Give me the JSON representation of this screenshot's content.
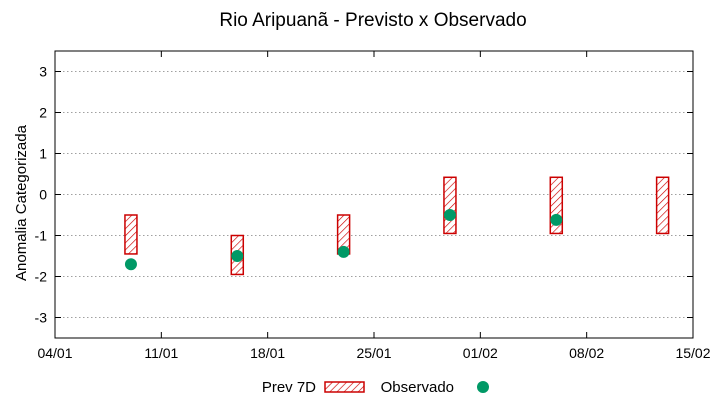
{
  "chart_data": {
    "type": "scatter",
    "title": "Rio Aripuanã - Previsto x Observado",
    "xlabel": "",
    "ylabel": "Anomalia Categorizada",
    "ylim": [
      -3.5,
      3.5
    ],
    "xlim": [
      0,
      42
    ],
    "grid": true,
    "x_ticks": [
      {
        "pos": 0,
        "label": "04/01"
      },
      {
        "pos": 7,
        "label": "11/01"
      },
      {
        "pos": 14,
        "label": "18/01"
      },
      {
        "pos": 21,
        "label": "25/01"
      },
      {
        "pos": 28,
        "label": "01/02"
      },
      {
        "pos": 35,
        "label": "08/02"
      },
      {
        "pos": 42,
        "label": "15/02"
      }
    ],
    "y_ticks": [
      -3,
      -2,
      -1,
      0,
      1,
      2,
      3
    ],
    "series": [
      {
        "name": "Prev 7D",
        "kind": "range-bar",
        "points": [
          {
            "day": 5,
            "low": -1.45,
            "high": -0.5
          },
          {
            "day": 12,
            "low": -1.95,
            "high": -1.0
          },
          {
            "day": 19,
            "low": -1.45,
            "high": -0.5
          },
          {
            "day": 26,
            "low": -0.95,
            "high": 0.42
          },
          {
            "day": 33,
            "low": -0.95,
            "high": 0.42
          },
          {
            "day": 40,
            "low": -0.95,
            "high": 0.42
          }
        ]
      },
      {
        "name": "Observado",
        "kind": "point",
        "points": [
          {
            "day": 5,
            "value": -1.7
          },
          {
            "day": 12,
            "value": -1.5
          },
          {
            "day": 19,
            "value": -1.4
          },
          {
            "day": 26,
            "value": -0.5
          },
          {
            "day": 33,
            "value": -0.62
          }
        ]
      }
    ],
    "legend": {
      "position": "bottom",
      "entries": [
        "Prev 7D",
        "Observado"
      ]
    },
    "colors": {
      "bar": "#cc0000",
      "point": "#009966",
      "grid": "#a0a0a0"
    }
  }
}
